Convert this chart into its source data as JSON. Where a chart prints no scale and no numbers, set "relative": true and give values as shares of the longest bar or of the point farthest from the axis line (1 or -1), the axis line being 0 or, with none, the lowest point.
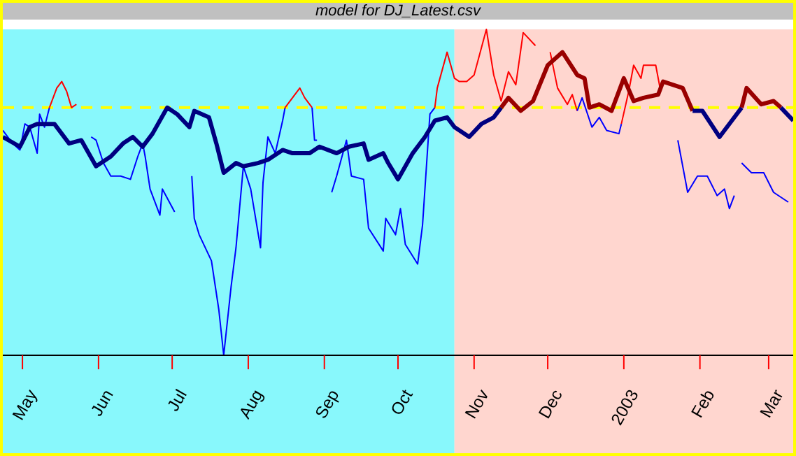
{
  "chart_data": {
    "type": "line",
    "title": "model for  DJ_Latest.csv",
    "relative": true,
    "legend": false,
    "grid": false,
    "marker": "none",
    "line_style": "solid",
    "xlim": [
      "2002-04-23",
      "2003-03-11"
    ],
    "xticks": [
      {
        "value": "2002-05-01",
        "label": "May"
      },
      {
        "value": "2002-06-01",
        "label": "Jun"
      },
      {
        "value": "2002-07-01",
        "label": "Jul"
      },
      {
        "value": "2002-08-01",
        "label": "Aug"
      },
      {
        "value": "2002-09-01",
        "label": "Sep"
      },
      {
        "value": "2002-10-01",
        "label": "Oct"
      },
      {
        "value": "2002-11-01",
        "label": "Nov"
      },
      {
        "value": "2002-12-01",
        "label": "Dec"
      },
      {
        "value": "2003-01-01",
        "label": "2003"
      },
      {
        "value": "2003-02-01",
        "label": "Feb"
      },
      {
        "value": "2003-03-01",
        "label": "Mar"
      }
    ],
    "bands": [
      {
        "axis": "x",
        "from": "2002-04-23",
        "to": "2002-10-24",
        "color": "#88f8fc"
      },
      {
        "axis": "x",
        "from": "2002-10-24",
        "to": "2003-03-11",
        "color": "#ffd6cf"
      }
    ],
    "ref_lines": [
      {
        "axis": "y",
        "value": 0.76,
        "color": "#ffff00",
        "line_style": "dashed"
      }
    ],
    "series": [
      {
        "color": "#0000ff",
        "x": [
          "2002-04-23",
          "2002-04-27",
          "2002-04-30",
          "2002-05-02",
          "2002-05-04",
          "2002-05-07",
          "2002-05-08",
          "2002-05-10",
          "2002-05-12"
        ],
        "values": [
          0.69,
          0.65,
          0.63,
          0.71,
          0.7,
          0.62,
          0.74,
          0.7,
          0.76
        ]
      },
      {
        "color": "#ff0000",
        "x": [
          "2002-05-12",
          "2002-05-15",
          "2002-05-17",
          "2002-05-19",
          "2002-05-21",
          "2002-05-23"
        ],
        "values": [
          0.76,
          0.82,
          0.84,
          0.81,
          0.76,
          0.77
        ]
      },
      {
        "color": "#0000ff",
        "x": [
          "2002-05-29",
          "2002-05-31",
          "2002-06-03",
          "2002-06-06",
          "2002-06-10",
          "2002-06-14",
          "2002-06-17",
          "2002-06-19",
          "2002-06-20",
          "2002-06-22",
          "2002-06-26",
          "2002-06-27",
          "2002-07-02"
        ],
        "values": [
          0.67,
          0.66,
          0.59,
          0.55,
          0.55,
          0.54,
          0.61,
          0.65,
          0.61,
          0.51,
          0.43,
          0.51,
          0.44
        ]
      },
      {
        "color": "#0000ff",
        "x": [
          "2002-07-09",
          "2002-07-10",
          "2002-07-12",
          "2002-07-17",
          "2002-07-20",
          "2002-07-22",
          "2002-07-25",
          "2002-07-27",
          "2002-07-30",
          "2002-08-02",
          "2002-08-06",
          "2002-08-07",
          "2002-08-09",
          "2002-08-12",
          "2002-08-15",
          "2002-08-16"
        ],
        "values": [
          0.55,
          0.42,
          0.37,
          0.29,
          0.14,
          0,
          0.21,
          0.33,
          0.58,
          0.51,
          0.33,
          0.53,
          0.67,
          0.62,
          0.72,
          0.76
        ]
      },
      {
        "color": "#ff0000",
        "x": [
          "2002-08-16",
          "2002-08-19",
          "2002-08-22",
          "2002-08-24",
          "2002-08-27"
        ],
        "values": [
          0.76,
          0.79,
          0.82,
          0.79,
          0.76
        ]
      },
      {
        "color": "#0000ff",
        "x": [
          "2002-08-27",
          "2002-08-28",
          "2002-08-29"
        ],
        "values": [
          0.76,
          0.66,
          0.66
        ]
      },
      {
        "color": "#0000ff",
        "x": [
          "2002-09-04",
          "2002-09-06",
          "2002-09-10",
          "2002-09-12",
          "2002-09-17",
          "2002-09-19",
          "2002-09-25",
          "2002-09-26",
          "2002-09-30",
          "2002-10-02",
          "2002-10-04",
          "2002-10-09",
          "2002-10-11",
          "2002-10-14",
          "2002-10-16"
        ],
        "values": [
          0.5,
          0.55,
          0.66,
          0.55,
          0.54,
          0.39,
          0.32,
          0.42,
          0.37,
          0.45,
          0.34,
          0.28,
          0.4,
          0.74,
          0.76
        ]
      },
      {
        "color": "#ff0000",
        "x": [
          "2002-10-16",
          "2002-10-17",
          "2002-10-21",
          "2002-10-24",
          "2002-10-26",
          "2002-10-29",
          "2002-11-01",
          "2002-11-06",
          "2002-11-09",
          "2002-11-12",
          "2002-11-15",
          "2002-11-18",
          "2002-11-21",
          "2002-11-26"
        ],
        "values": [
          0.76,
          0.82,
          0.93,
          0.85,
          0.84,
          0.84,
          0.86,
          1,
          0.86,
          0.78,
          0.87,
          0.83,
          0.99,
          0.95
        ]
      },
      {
        "color": "#ff0000",
        "x": [
          "2002-12-02",
          "2002-12-05",
          "2002-12-09",
          "2002-12-11",
          "2002-12-13"
        ],
        "values": [
          0.93,
          0.82,
          0.77,
          0.8,
          0.75
        ]
      },
      {
        "color": "#0000ff",
        "x": [
          "2002-12-13",
          "2002-12-15",
          "2002-12-19",
          "2002-12-22",
          "2002-12-25",
          "2002-12-30",
          "2002-12-31"
        ],
        "values": [
          0.75,
          0.79,
          0.7,
          0.73,
          0.69,
          0.68,
          0.71
        ]
      },
      {
        "color": "#ff0000",
        "x": [
          "2002-12-31",
          "2003-01-03",
          "2003-01-05",
          "2003-01-08",
          "2003-01-09",
          "2003-01-14",
          "2003-01-16"
        ],
        "values": [
          0.71,
          0.81,
          0.89,
          0.85,
          0.89,
          0.89,
          0.81
        ]
      },
      {
        "color": "#0000ff",
        "x": [
          "2003-01-23",
          "2003-01-27",
          "2003-01-31",
          "2003-02-04",
          "2003-02-08",
          "2003-02-11",
          "2003-02-13",
          "2003-02-15"
        ],
        "values": [
          0.66,
          0.5,
          0.55,
          0.55,
          0.49,
          0.51,
          0.45,
          0.49
        ]
      },
      {
        "color": "#0000ff",
        "x": [
          "2003-02-18",
          "2003-02-22",
          "2003-02-27",
          "2003-03-03",
          "2003-03-09"
        ],
        "values": [
          0.59,
          0.56,
          0.56,
          0.5,
          0.47
        ]
      },
      {
        "color": "#000080",
        "x": [
          "2002-04-23",
          "2002-04-30",
          "2002-05-04",
          "2002-05-07",
          "2002-05-14",
          "2002-05-20",
          "2002-05-25",
          "2002-05-31",
          "2002-06-06",
          "2002-06-11",
          "2002-06-15",
          "2002-06-19",
          "2002-06-23",
          "2002-06-29",
          "2002-07-03",
          "2002-07-08",
          "2002-07-10",
          "2002-07-16",
          "2002-07-19",
          "2002-07-22",
          "2002-07-27",
          "2002-07-30",
          "2002-08-05",
          "2002-08-09",
          "2002-08-15",
          "2002-08-19",
          "2002-08-26",
          "2002-08-30",
          "2002-09-06",
          "2002-09-11",
          "2002-09-17",
          "2002-09-19",
          "2002-09-25",
          "2002-09-27",
          "2002-10-01",
          "2002-10-07",
          "2002-10-12",
          "2002-10-16",
          "2002-10-21",
          "2002-10-24",
          "2002-10-30",
          "2002-11-04",
          "2002-11-09",
          "2002-11-12"
        ],
        "values": [
          0.67,
          0.64,
          0.7,
          0.71,
          0.71,
          0.65,
          0.66,
          0.58,
          0.61,
          0.65,
          0.67,
          0.64,
          0.68,
          0.76,
          0.74,
          0.7,
          0.75,
          0.73,
          0.65,
          0.56,
          0.59,
          0.58,
          0.59,
          0.6,
          0.63,
          0.62,
          0.62,
          0.64,
          0.62,
          0.64,
          0.65,
          0.6,
          0.62,
          0.59,
          0.54,
          0.62,
          0.67,
          0.72,
          0.73,
          0.7,
          0.67,
          0.71,
          0.73,
          0.76
        ]
      },
      {
        "color": "#990000",
        "x": [
          "2002-11-12",
          "2002-11-15",
          "2002-11-20",
          "2002-11-25",
          "2002-12-01",
          "2002-12-07",
          "2002-12-13",
          "2002-12-16",
          "2002-12-18",
          "2002-12-22",
          "2002-12-27",
          "2003-01-01",
          "2003-01-05",
          "2003-01-09",
          "2003-01-15",
          "2003-01-17",
          "2003-01-25",
          "2003-01-29"
        ],
        "values": [
          0.76,
          0.79,
          0.75,
          0.78,
          0.89,
          0.93,
          0.86,
          0.85,
          0.76,
          0.77,
          0.75,
          0.85,
          0.78,
          0.79,
          0.8,
          0.84,
          0.82,
          0.75
        ]
      },
      {
        "color": "#000080",
        "x": [
          "2003-01-29",
          "2003-02-02",
          "2003-02-09",
          "2003-02-14",
          "2003-02-18"
        ],
        "values": [
          0.75,
          0.75,
          0.67,
          0.72,
          0.76
        ]
      },
      {
        "color": "#990000",
        "x": [
          "2003-02-18",
          "2003-02-20",
          "2003-02-26",
          "2003-03-03",
          "2003-03-06"
        ],
        "values": [
          0.76,
          0.82,
          0.77,
          0.78,
          0.76
        ]
      },
      {
        "color": "#000080",
        "x": [
          "2003-03-06",
          "2003-03-11"
        ],
        "values": [
          0.76,
          0.72
        ]
      }
    ]
  }
}
